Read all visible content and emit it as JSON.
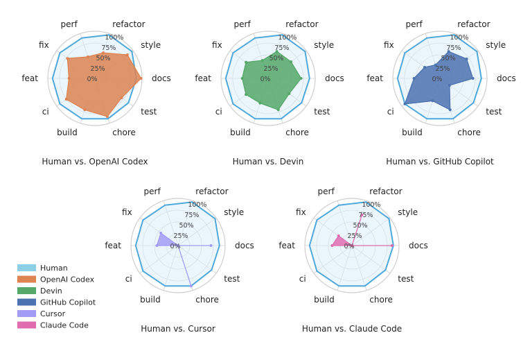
{
  "chart_data": {
    "type": "radar",
    "axes": [
      "docs",
      "style",
      "refactor",
      "perf",
      "fix",
      "feat",
      "ci",
      "build",
      "chore",
      "test"
    ],
    "tick_labels": [
      "0%",
      "25%",
      "50%",
      "75%",
      "100%"
    ],
    "rlim": [
      0,
      100
    ],
    "grid": true,
    "legend_position": "bottom-left",
    "legend": [
      {
        "name": "Human",
        "color": "#8ecfe8"
      },
      {
        "name": "OpenAI Codex",
        "color": "#dd8452"
      },
      {
        "name": "Devin",
        "color": "#55a868"
      },
      {
        "name": "GitHub Copilot",
        "color": "#4c72b0"
      },
      {
        "name": "Cursor",
        "color": "#a29cf4"
      },
      {
        "name": "Claude Code",
        "color": "#e06cb0"
      }
    ],
    "human": {
      "name": "Human",
      "line_color": "#4ea8dc",
      "fill_color": "#dbeefa",
      "values": [
        88,
        97,
        97,
        90,
        92,
        90,
        92,
        90,
        90,
        88
      ]
    },
    "panels": [
      {
        "subtitle": "Human vs. OpenAI Codex",
        "series": "OpenAI Codex",
        "color": "#dd8452",
        "values": [
          98,
          85,
          57,
          48,
          72,
          55,
          75,
          70,
          85,
          70
        ]
      },
      {
        "subtitle": "Human vs. Devin",
        "series": "Devin",
        "color": "#55a868",
        "values": [
          70,
          60,
          60,
          40,
          58,
          55,
          58,
          55,
          70,
          55
        ]
      },
      {
        "subtitle": "Human vs. GitHub Copilot",
        "series": "GitHub Copilot",
        "color": "#4c72b0",
        "values": [
          70,
          70,
          60,
          30,
          40,
          55,
          92,
          50,
          70,
          25
        ]
      },
      {
        "subtitle": "Human vs. Cursor",
        "series": "Cursor",
        "color": "#a29cf4",
        "values": [
          70,
          0,
          0,
          0,
          45,
          45,
          0,
          0,
          90,
          0
        ]
      },
      {
        "subtitle": "Human vs. Claude Code",
        "series": "Claude Code",
        "color": "#e06cb0",
        "values": [
          85,
          0,
          68,
          0,
          35,
          42,
          0,
          0,
          0,
          0
        ]
      }
    ]
  }
}
